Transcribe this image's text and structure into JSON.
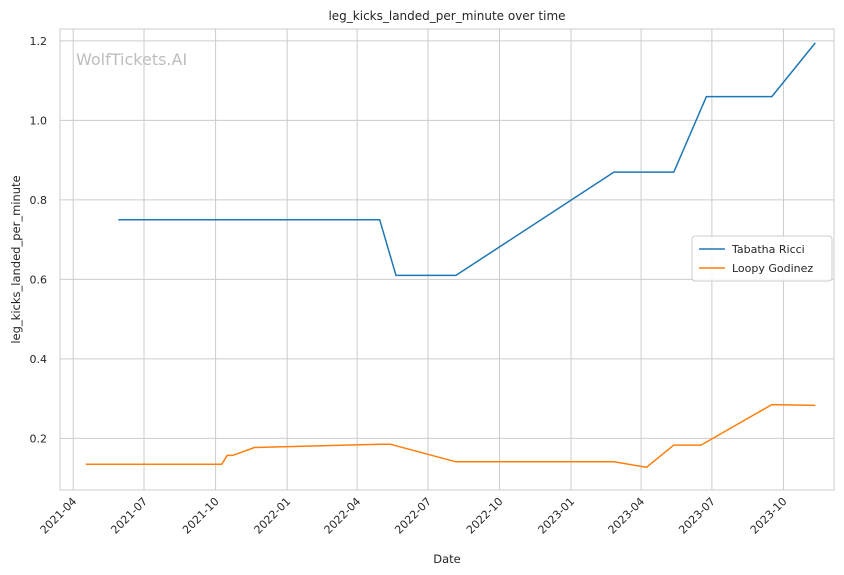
{
  "chart_data": {
    "type": "line",
    "title": "leg_kicks_landed_per_minute over time",
    "xlabel": "Date",
    "ylabel": "leg_kicks_landed_per_minute",
    "watermark": "WolfTickets.AI",
    "xlim": [
      "2021-03-15",
      "2023-12-05"
    ],
    "ylim": [
      0.07,
      1.23
    ],
    "x_ticks": [
      "2021-04",
      "2021-07",
      "2021-10",
      "2022-01",
      "2022-04",
      "2022-07",
      "2022-10",
      "2023-01",
      "2023-04",
      "2023-07",
      "2023-10"
    ],
    "y_ticks": [
      0.2,
      0.4,
      0.6,
      0.8,
      1.0,
      1.2
    ],
    "y_tick_labels": [
      "0.2",
      "0.4",
      "0.6",
      "0.8",
      "1.0",
      "1.2"
    ],
    "grid": true,
    "legend_position": "center-right",
    "series": [
      {
        "name": "Tabatha Ricci",
        "color": "#1f77b4",
        "points": [
          {
            "x": "2021-05-29",
            "y": 0.75
          },
          {
            "x": "2022-04-30",
            "y": 0.75
          },
          {
            "x": "2022-05-21",
            "y": 0.61
          },
          {
            "x": "2022-08-06",
            "y": 0.61
          },
          {
            "x": "2023-02-25",
            "y": 0.87
          },
          {
            "x": "2023-05-13",
            "y": 0.87
          },
          {
            "x": "2023-06-24",
            "y": 1.06
          },
          {
            "x": "2023-09-16",
            "y": 1.06
          },
          {
            "x": "2023-11-11",
            "y": 1.195
          }
        ]
      },
      {
        "name": "Loopy Godinez",
        "color": "#ff7f0e",
        "points": [
          {
            "x": "2021-04-17",
            "y": 0.135
          },
          {
            "x": "2021-10-09",
            "y": 0.135
          },
          {
            "x": "2021-10-16",
            "y": 0.157
          },
          {
            "x": "2021-10-23",
            "y": 0.157
          },
          {
            "x": "2021-11-20",
            "y": 0.177
          },
          {
            "x": "2022-04-30",
            "y": 0.185
          },
          {
            "x": "2022-05-14",
            "y": 0.185
          },
          {
            "x": "2022-08-06",
            "y": 0.141
          },
          {
            "x": "2023-02-25",
            "y": 0.141
          },
          {
            "x": "2023-04-08",
            "y": 0.127
          },
          {
            "x": "2023-05-13",
            "y": 0.183
          },
          {
            "x": "2023-06-17",
            "y": 0.183
          },
          {
            "x": "2023-09-16",
            "y": 0.285
          },
          {
            "x": "2023-11-11",
            "y": 0.283
          }
        ]
      }
    ]
  }
}
